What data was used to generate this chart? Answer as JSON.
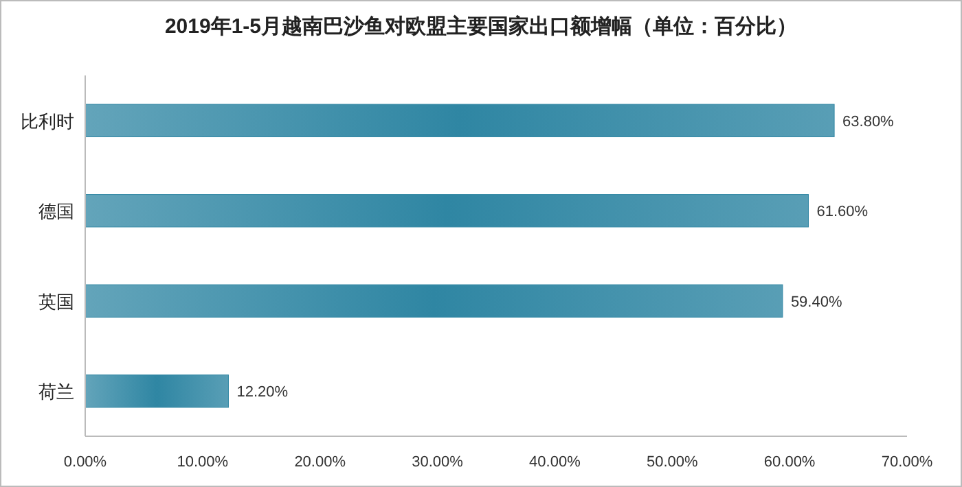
{
  "chart_data": {
    "type": "bar",
    "orientation": "horizontal",
    "title": "2019年1-5月越南巴沙鱼对欧盟主要国家出口额增幅（单位：百分比）",
    "categories": [
      "比利时",
      "德国",
      "英国",
      "荷兰"
    ],
    "values": [
      63.8,
      61.6,
      59.4,
      12.2
    ],
    "value_labels": [
      "63.80%",
      "61.60%",
      "59.40%",
      "12.20%"
    ],
    "color": "#2f86a3",
    "xlim": [
      0,
      70
    ],
    "xticks": [
      {
        "value": 0,
        "label": "0.00%"
      },
      {
        "value": 10,
        "label": "10.00%"
      },
      {
        "value": 20,
        "label": "20.00%"
      },
      {
        "value": 30,
        "label": "30.00%"
      },
      {
        "value": 40,
        "label": "40.00%"
      },
      {
        "value": 50,
        "label": "50.00%"
      },
      {
        "value": 60,
        "label": "60.00%"
      },
      {
        "value": 70,
        "label": "70.00%"
      }
    ],
    "grid": false
  }
}
